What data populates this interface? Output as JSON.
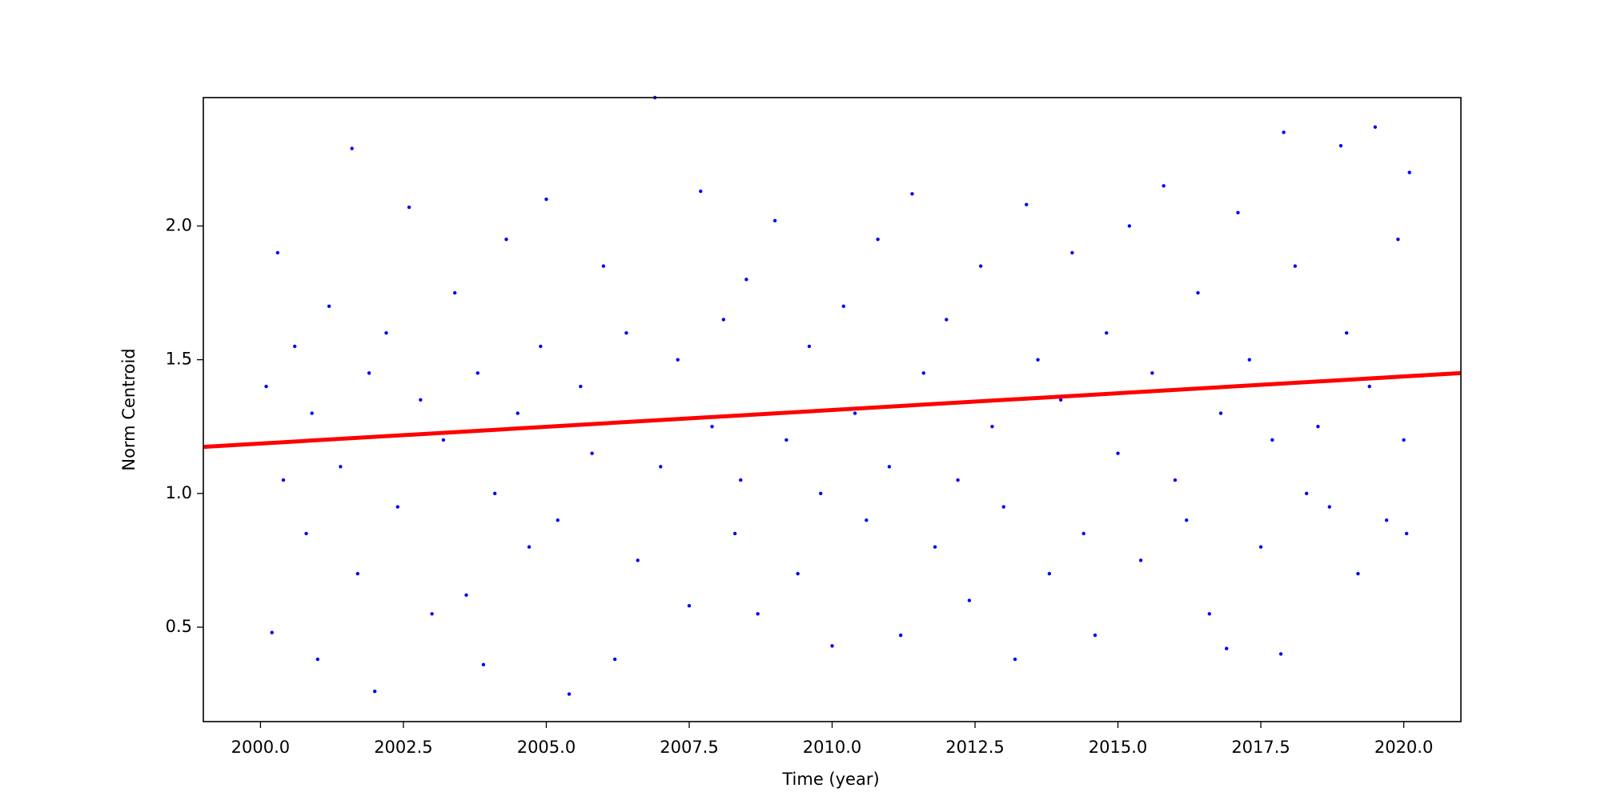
{
  "chart_data": {
    "type": "scatter",
    "x_label": "Time (year)",
    "y_label": "Norm Centroid",
    "xlim": [
      1999.0,
      2021.0
    ],
    "ylim": [
      0.147,
      2.48
    ],
    "xticks": [
      {
        "value": 2000,
        "label": "2000.0"
      },
      {
        "value": 2002.5,
        "label": "2002.5"
      },
      {
        "value": 2005,
        "label": "2005.0"
      },
      {
        "value": 2007.5,
        "label": "2007.5"
      },
      {
        "value": 2010,
        "label": "2010.0"
      },
      {
        "value": 2012.5,
        "label": "2012.5"
      },
      {
        "value": 2015,
        "label": "2015.0"
      },
      {
        "value": 2017.5,
        "label": "2017.5"
      },
      {
        "value": 2020,
        "label": "2020.0"
      }
    ],
    "yticks": [
      0.5,
      {
        "value": 1,
        "label": "1.0"
      },
      1.5,
      {
        "value": 2,
        "label": "2.0"
      }
    ],
    "color": "blue",
    "x": [
      2000.1,
      2000.2,
      2000.3,
      2000.4,
      2000.6,
      2000.8,
      2000.9,
      2001.0,
      2001.2,
      2001.4,
      2001.6,
      2001.7,
      2001.9,
      2002.0,
      2002.2,
      2002.4,
      2002.6,
      2002.8,
      2003.0,
      2003.2,
      2003.4,
      2003.6,
      2003.8,
      2003.9,
      2004.1,
      2004.3,
      2004.5,
      2004.7,
      2004.9,
      2005.0,
      2005.2,
      2005.4,
      2005.6,
      2005.8,
      2006.0,
      2006.2,
      2006.4,
      2006.6,
      2006.9,
      2007.0,
      2007.3,
      2007.5,
      2007.7,
      2007.9,
      2008.1,
      2008.3,
      2008.4,
      2008.5,
      2008.7,
      2009.0,
      2009.2,
      2009.4,
      2009.6,
      2009.8,
      2010.0,
      2010.2,
      2010.4,
      2010.6,
      2010.8,
      2011.0,
      2011.2,
      2011.4,
      2011.6,
      2011.8,
      2012.0,
      2012.2,
      2012.4,
      2012.6,
      2012.8,
      2013.0,
      2013.2,
      2013.4,
      2013.6,
      2013.8,
      2014.0,
      2014.2,
      2014.4,
      2014.6,
      2014.8,
      2015.0,
      2015.2,
      2015.4,
      2015.6,
      2015.8,
      2016.0,
      2016.2,
      2016.4,
      2016.6,
      2016.8,
      2016.9,
      2017.1,
      2017.3,
      2017.5,
      2017.7,
      2017.85,
      2017.9,
      2018.1,
      2018.3,
      2018.5,
      2018.7,
      2018.9,
      2019.0,
      2019.2,
      2019.4,
      2019.5,
      2019.7,
      2019.9,
      2020.0,
      2020.1,
      2020.05
    ],
    "values": [
      1.4,
      0.48,
      1.9,
      1.05,
      1.55,
      0.85,
      1.3,
      0.38,
      1.7,
      1.1,
      2.29,
      0.7,
      1.45,
      0.26,
      1.6,
      0.95,
      2.07,
      1.35,
      0.55,
      1.2,
      1.75,
      0.62,
      1.45,
      0.36,
      1.0,
      1.95,
      1.3,
      0.8,
      1.55,
      2.1,
      0.9,
      0.25,
      1.4,
      1.15,
      1.85,
      0.38,
      1.6,
      0.75,
      2.48,
      1.1,
      1.5,
      0.58,
      2.13,
      1.25,
      1.65,
      0.85,
      1.05,
      1.8,
      0.55,
      2.02,
      1.2,
      0.7,
      1.55,
      1.0,
      0.43,
      1.7,
      1.3,
      0.9,
      1.95,
      1.1,
      0.47,
      2.12,
      1.45,
      0.8,
      1.65,
      1.05,
      0.6,
      1.85,
      1.25,
      0.95,
      0.38,
      2.08,
      1.5,
      0.7,
      1.35,
      1.9,
      0.85,
      0.47,
      1.6,
      1.15,
      2.0,
      0.75,
      1.45,
      2.15,
      1.05,
      0.9,
      1.75,
      0.55,
      1.3,
      0.42,
      2.05,
      1.5,
      0.8,
      1.2,
      0.4,
      2.35,
      1.85,
      1.0,
      1.25,
      0.95,
      2.3,
      1.6,
      0.7,
      1.4,
      2.37,
      0.9,
      1.95,
      1.2,
      2.2,
      0.85
    ],
    "trend": {
      "color": "red",
      "x": [
        1999.0,
        2021.0
      ],
      "values": [
        1.174,
        1.45
      ]
    }
  }
}
